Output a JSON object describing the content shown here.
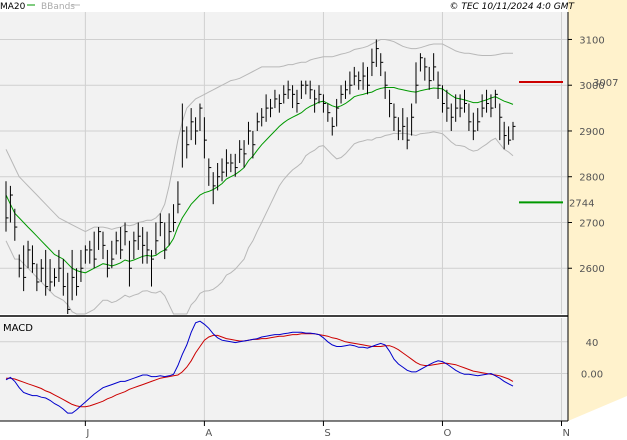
{
  "header": {
    "legend_ma": "MA20",
    "legend_bbands": "BBands",
    "copyright": "© TEC 10/11/2024 4:0 GMT"
  },
  "colors": {
    "background": "#ffffff",
    "plot_area": "#f2f2f2",
    "right_margin": "#fff2cc",
    "grid": "#d0d0d0",
    "price_bar": "#000000",
    "ma": "#009900",
    "bbands": "#b8b8b8",
    "macd": "#0000cc",
    "signal": "#cc0000",
    "resistance": "#cc0000",
    "support": "#009900"
  },
  "chart_data": [
    {
      "type": "ohlc",
      "name": "price",
      "ylim": [
        2500,
        3160
      ],
      "y_ticks": [
        2600,
        2700,
        2800,
        2900,
        3000,
        3100
      ],
      "y_tick_labels": [
        "2600",
        "2700",
        "2800",
        "2900",
        "3000",
        "3100"
      ],
      "x_ticks": [
        "J",
        "A",
        "S",
        "O",
        "N"
      ],
      "x_tick_index": [
        18,
        45,
        72,
        99,
        126
      ],
      "levels": [
        {
          "name": "resistance",
          "value": 3007,
          "label": "3007"
        },
        {
          "name": "support",
          "value": 2744,
          "label": "2744"
        }
      ],
      "series": [
        {
          "name": "close",
          "values": [
            2710,
            2760,
            2690,
            2600,
            2580,
            2640,
            2610,
            2570,
            2600,
            2560,
            2570,
            2580,
            2600,
            2560,
            2510,
            2580,
            2560,
            2600,
            2640,
            2640,
            2620,
            2680,
            2650,
            2600,
            2620,
            2660,
            2640,
            2680,
            2600,
            2660,
            2670,
            2650,
            2640,
            2620,
            2660,
            2700,
            2640,
            2680,
            2700,
            2740,
            2900,
            2870,
            2920,
            2900,
            2950,
            2880,
            2820,
            2780,
            2800,
            2810,
            2830,
            2830,
            2820,
            2860,
            2850,
            2900,
            2870,
            2920,
            2930,
            2950,
            2950,
            2970,
            2960,
            2980,
            2990,
            2980,
            2960,
            3000,
            3000,
            2990,
            2970,
            2980,
            2960,
            2940,
            2910,
            2950,
            2980,
            2990,
            3000,
            3020,
            3010,
            3020,
            3000,
            3050,
            3080,
            3050,
            3000,
            2960,
            2930,
            2900,
            2910,
            2880,
            2930,
            3000,
            3060,
            3040,
            3010,
            3040,
            3000,
            2960,
            2950,
            2930,
            2950,
            2950,
            2960,
            2920,
            2900,
            2920,
            2950,
            2960,
            2950,
            2980,
            2930,
            2890,
            2880,
            2910
          ]
        },
        {
          "name": "high",
          "values": [
            2790,
            2780,
            2730,
            2630,
            2650,
            2660,
            2650,
            2610,
            2620,
            2640,
            2620,
            2600,
            2640,
            2620,
            2590,
            2640,
            2600,
            2640,
            2650,
            2660,
            2680,
            2690,
            2680,
            2640,
            2660,
            2680,
            2690,
            2700,
            2660,
            2680,
            2700,
            2690,
            2680,
            2640,
            2700,
            2720,
            2700,
            2720,
            2740,
            2790,
            2960,
            2910,
            2950,
            2930,
            2960,
            2930,
            2840,
            2810,
            2830,
            2840,
            2860,
            2850,
            2850,
            2880,
            2880,
            2920,
            2900,
            2940,
            2950,
            2980,
            2970,
            2990,
            2980,
            3000,
            3010,
            3000,
            2990,
            3010,
            3010,
            3010,
            2990,
            3000,
            2980,
            2960,
            2930,
            2970,
            3000,
            3010,
            3030,
            3040,
            3030,
            3050,
            3040,
            3080,
            3100,
            3070,
            3030,
            2990,
            2960,
            2930,
            2950,
            2930,
            2960,
            3050,
            3070,
            3060,
            3040,
            3070,
            3030,
            3000,
            2990,
            2960,
            2980,
            2980,
            2990,
            2960,
            2940,
            2950,
            2980,
            2990,
            2980,
            2990,
            2960,
            2920,
            2910,
            2920
          ]
        },
        {
          "name": "low",
          "values": [
            2680,
            2700,
            2660,
            2580,
            2550,
            2600,
            2590,
            2550,
            2570,
            2540,
            2550,
            2560,
            2570,
            2540,
            2500,
            2530,
            2540,
            2570,
            2610,
            2610,
            2600,
            2640,
            2620,
            2580,
            2600,
            2630,
            2620,
            2650,
            2560,
            2620,
            2640,
            2610,
            2610,
            2560,
            2630,
            2670,
            2620,
            2650,
            2680,
            2720,
            2820,
            2840,
            2880,
            2870,
            2900,
            2840,
            2780,
            2740,
            2770,
            2790,
            2800,
            2810,
            2800,
            2830,
            2820,
            2870,
            2840,
            2900,
            2910,
            2920,
            2930,
            2950,
            2940,
            2960,
            2970,
            2950,
            2940,
            2970,
            2980,
            2970,
            2940,
            2960,
            2940,
            2920,
            2890,
            2910,
            2960,
            2970,
            2980,
            3000,
            2990,
            2990,
            2980,
            3020,
            3040,
            3020,
            2970,
            2930,
            2900,
            2880,
            2880,
            2860,
            2890,
            2960,
            3030,
            3010,
            2990,
            3010,
            2970,
            2940,
            2920,
            2900,
            2920,
            2930,
            2940,
            2900,
            2880,
            2900,
            2930,
            2940,
            2930,
            2950,
            2880,
            2860,
            2870,
            2880
          ]
        },
        {
          "name": "MA20",
          "values": [
            2760,
            2740,
            2720,
            2710,
            2700,
            2690,
            2680,
            2670,
            2660,
            2650,
            2640,
            2630,
            2625,
            2620,
            2610,
            2600,
            2595,
            2592,
            2590,
            2595,
            2600,
            2605,
            2610,
            2608,
            2605,
            2608,
            2612,
            2618,
            2615,
            2618,
            2622,
            2626,
            2628,
            2626,
            2628,
            2635,
            2640,
            2650,
            2665,
            2690,
            2710,
            2725,
            2740,
            2750,
            2760,
            2765,
            2768,
            2772,
            2778,
            2785,
            2795,
            2800,
            2805,
            2812,
            2820,
            2835,
            2845,
            2858,
            2870,
            2880,
            2890,
            2900,
            2910,
            2918,
            2925,
            2930,
            2935,
            2940,
            2948,
            2954,
            2958,
            2963,
            2965,
            2960,
            2955,
            2952,
            2955,
            2960,
            2967,
            2975,
            2978,
            2980,
            2983,
            2985,
            2990,
            2993,
            2995,
            2995,
            2995,
            2992,
            2990,
            2988,
            2986,
            2985,
            2988,
            2990,
            2992,
            2994,
            2993,
            2992,
            2985,
            2978,
            2972,
            2970,
            2968,
            2965,
            2962,
            2962,
            2965,
            2968,
            2972,
            2975,
            2970,
            2965,
            2962,
            2958
          ]
        },
        {
          "name": "BBands upper",
          "values": [
            2860,
            2840,
            2820,
            2800,
            2790,
            2780,
            2770,
            2760,
            2750,
            2740,
            2730,
            2720,
            2710,
            2705,
            2700,
            2695,
            2690,
            2685,
            2680,
            2685,
            2690,
            2690,
            2690,
            2688,
            2685,
            2688,
            2690,
            2695,
            2693,
            2695,
            2700,
            2702,
            2705,
            2705,
            2710,
            2720,
            2740,
            2780,
            2830,
            2880,
            2920,
            2950,
            2960,
            2970,
            2975,
            2980,
            2985,
            2990,
            2995,
            3000,
            3005,
            3010,
            3012,
            3015,
            3020,
            3025,
            3030,
            3035,
            3040,
            3040,
            3040,
            3040,
            3040,
            3042,
            3045,
            3045,
            3048,
            3050,
            3050,
            3055,
            3058,
            3060,
            3062,
            3062,
            3062,
            3065,
            3068,
            3070,
            3073,
            3078,
            3080,
            3082,
            3085,
            3090,
            3095,
            3100,
            3100,
            3098,
            3095,
            3090,
            3085,
            3082,
            3080,
            3080,
            3082,
            3085,
            3088,
            3090,
            3090,
            3090,
            3085,
            3080,
            3075,
            3072,
            3070,
            3070,
            3068,
            3066,
            3065,
            3065,
            3065,
            3066,
            3068,
            3070,
            3070,
            3070
          ]
        },
        {
          "name": "BBands lower",
          "values": [
            2660,
            2640,
            2620,
            2620,
            2610,
            2600,
            2590,
            2580,
            2570,
            2560,
            2550,
            2540,
            2535,
            2530,
            2520,
            2505,
            2500,
            2500,
            2500,
            2505,
            2510,
            2520,
            2530,
            2530,
            2525,
            2528,
            2534,
            2541,
            2537,
            2541,
            2544,
            2550,
            2551,
            2547,
            2546,
            2550,
            2540,
            2520,
            2500,
            2500,
            2500,
            2500,
            2520,
            2530,
            2545,
            2550,
            2551,
            2554,
            2561,
            2570,
            2585,
            2590,
            2598,
            2609,
            2620,
            2645,
            2660,
            2681,
            2700,
            2720,
            2740,
            2760,
            2780,
            2794,
            2805,
            2815,
            2822,
            2830,
            2846,
            2853,
            2858,
            2866,
            2868,
            2858,
            2848,
            2839,
            2842,
            2850,
            2861,
            2872,
            2876,
            2878,
            2881,
            2880,
            2885,
            2886,
            2890,
            2892,
            2895,
            2894,
            2895,
            2894,
            2892,
            2890,
            2894,
            2895,
            2896,
            2898,
            2896,
            2894,
            2885,
            2876,
            2869,
            2868,
            2866,
            2860,
            2856,
            2858,
            2865,
            2871,
            2879,
            2884,
            2872,
            2860,
            2854,
            2846
          ]
        }
      ]
    },
    {
      "type": "line",
      "name": "MACD",
      "title": "MACD",
      "ylim": [
        -60,
        70
      ],
      "y_ticks": [
        0,
        40
      ],
      "y_tick_labels": [
        "0.00",
        "40"
      ],
      "series": [
        {
          "name": "MACD",
          "values": [
            -8,
            -5,
            -10,
            -18,
            -24,
            -26,
            -28,
            -28,
            -30,
            -31,
            -34,
            -38,
            -41,
            -45,
            -50,
            -50,
            -46,
            -41,
            -36,
            -31,
            -26,
            -22,
            -18,
            -16,
            -14,
            -12,
            -10,
            -10,
            -8,
            -6,
            -4,
            -2,
            -2,
            -4,
            -4,
            -3,
            -4,
            -3,
            -1,
            10,
            24,
            36,
            52,
            64,
            66,
            62,
            57,
            50,
            45,
            42,
            41,
            40,
            39,
            40,
            41,
            42,
            43,
            44,
            46,
            47,
            48,
            49,
            49,
            50,
            51,
            52,
            52,
            52,
            51,
            51,
            50,
            49,
            45,
            40,
            36,
            34,
            34,
            35,
            36,
            35,
            33,
            33,
            32,
            34,
            36,
            38,
            36,
            28,
            18,
            12,
            8,
            4,
            2,
            2,
            5,
            8,
            11,
            14,
            16,
            15,
            12,
            8,
            4,
            1,
            -1,
            -1,
            -2,
            -3,
            -2,
            -1,
            0,
            -3,
            -6,
            -10,
            -13,
            -16
          ]
        },
        {
          "name": "Signal",
          "values": [
            -6,
            -6,
            -7,
            -9,
            -11,
            -13,
            -15,
            -17,
            -19,
            -22,
            -24,
            -27,
            -30,
            -33,
            -36,
            -39,
            -41,
            -42,
            -42,
            -41,
            -39,
            -37,
            -35,
            -32,
            -30,
            -27,
            -25,
            -23,
            -20,
            -18,
            -16,
            -14,
            -12,
            -10,
            -8,
            -6,
            -5,
            -4,
            -3,
            -2,
            2,
            8,
            16,
            26,
            34,
            42,
            46,
            48,
            48,
            46,
            44,
            43,
            42,
            41,
            41,
            42,
            43,
            43,
            44,
            44,
            45,
            46,
            47,
            47,
            48,
            49,
            49,
            50,
            50,
            50,
            50,
            49,
            48,
            47,
            45,
            44,
            42,
            40,
            39,
            38,
            37,
            36,
            35,
            34,
            34,
            34,
            35,
            35,
            33,
            30,
            26,
            22,
            18,
            14,
            11,
            10,
            10,
            11,
            12,
            13,
            13,
            12,
            11,
            9,
            7,
            5,
            3,
            2,
            1,
            0,
            -1,
            -2,
            -3,
            -5,
            -7,
            -10
          ]
        }
      ]
    }
  ]
}
